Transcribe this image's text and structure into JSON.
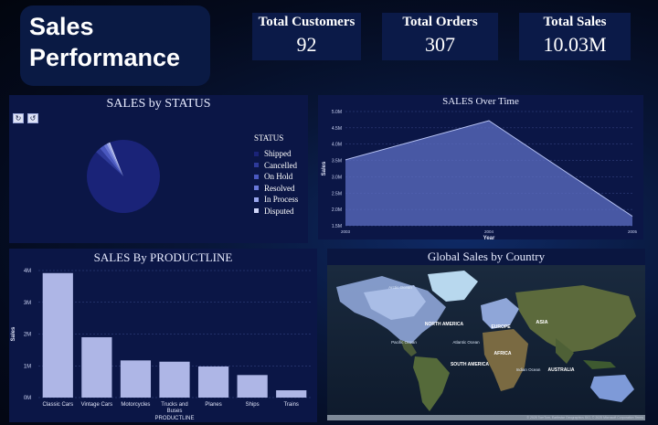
{
  "header": {
    "title_line1": "Sales",
    "title_line2": "Performance"
  },
  "kpis": [
    {
      "label": "Total Customers",
      "value": "92"
    },
    {
      "label": "Total Orders",
      "value": "307"
    },
    {
      "label": "Total Sales",
      "value": "10.03M"
    }
  ],
  "status_panel": {
    "title": "SALES by STATUS",
    "legend_title": "STATUS",
    "reset_icon": "rotate-icon",
    "undo_icon": "undo-icon"
  },
  "time_panel": {
    "title": "SALES Over Time"
  },
  "product_panel": {
    "title": "SALES By PRODUCTLINE"
  },
  "map_panel": {
    "title": "Global Sales by Country",
    "labels": [
      "Arctic Ocean",
      "NORTH AMERICA",
      "EUROPE",
      "ASIA",
      "Pacific Ocean",
      "Atlantic Ocean",
      "AFRICA",
      "SOUTH AMERICA",
      "Indian Ocean",
      "AUSTRALIA"
    ],
    "attribution": "© 2025 TomTom, Earthstar Geographics SIO, © 2025 Microsoft Corporation  Terms"
  },
  "chart_data": [
    {
      "type": "pie",
      "title": "SALES by STATUS",
      "legend_title": "STATUS",
      "categories": [
        "Shipped",
        "Cancelled",
        "On Hold",
        "Resolved",
        "In Process",
        "Disputed"
      ],
      "values": [
        92.6,
        2.3,
        2.1,
        1.4,
        1.0,
        0.6
      ],
      "colors": [
        "#1a2378",
        "#2e3a9a",
        "#4a58c0",
        "#6a78d8",
        "#9aa6ec",
        "#d0d6f8"
      ],
      "legend_position": "right"
    },
    {
      "type": "area",
      "title": "SALES Over Time",
      "xlabel": "Year",
      "ylabel": "Sales",
      "x": [
        "2003",
        "2004",
        "2005"
      ],
      "values": [
        3.52,
        4.72,
        1.79
      ],
      "yticks": [
        "1.5M",
        "2.0M",
        "2.5M",
        "3.0M",
        "3.5M",
        "4.0M",
        "4.5M",
        "5.0M"
      ],
      "ylim": [
        1.5,
        5.0
      ],
      "grid": true
    },
    {
      "type": "bar",
      "title": "SALES By PRODUCTLINE",
      "xlabel": "PRODUCTLINE",
      "ylabel": "Sales",
      "categories": [
        "Classic Cars",
        "Vintage Cars",
        "Motorcycles",
        "Trucks and Buses",
        "Planes",
        "Ships",
        "Trains"
      ],
      "values": [
        3.92,
        1.9,
        1.17,
        1.13,
        0.98,
        0.71,
        0.23
      ],
      "yticks": [
        "0M",
        "1M",
        "2M",
        "3M",
        "4M"
      ],
      "ylim": [
        0,
        4
      ],
      "grid": true
    }
  ]
}
